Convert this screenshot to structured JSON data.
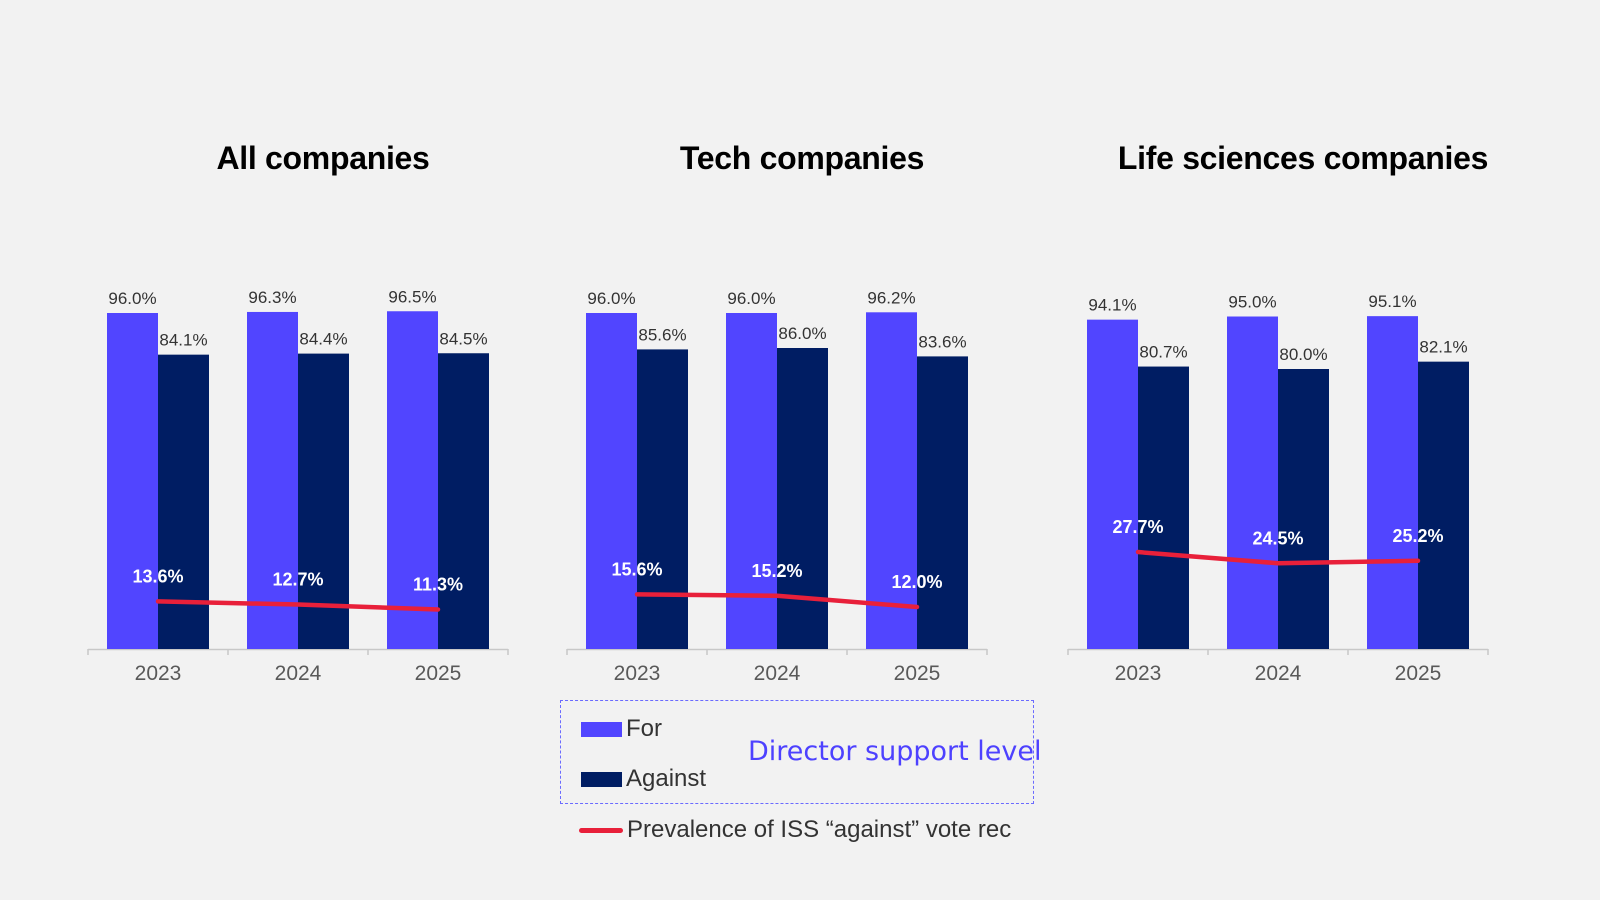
{
  "colors": {
    "for": "#5145ff",
    "against": "#001d63",
    "line": "#e8203a",
    "axis": "#c8c8c8"
  },
  "legend": {
    "for_label": "For",
    "against_label": "Against",
    "line_label": "Prevalence of ISS “against” vote rec",
    "caption": "Director support level"
  },
  "chart_data": [
    {
      "type": "bar",
      "title": "All companies",
      "categories": [
        "2023",
        "2024",
        "2025"
      ],
      "ylim": [
        0,
        100
      ],
      "series": [
        {
          "name": "For",
          "kind": "bar",
          "values": [
            96.0,
            96.3,
            96.5
          ],
          "labels": [
            "96.0%",
            "96.3%",
            "96.5%"
          ]
        },
        {
          "name": "Against",
          "kind": "bar",
          "values": [
            84.1,
            84.4,
            84.5
          ],
          "labels": [
            "84.1%",
            "84.4%",
            "84.5%"
          ]
        },
        {
          "name": "Prevalence of ISS “against” vote rec",
          "kind": "line",
          "values": [
            13.6,
            12.7,
            11.3
          ],
          "labels": [
            "13.6%",
            "12.7%",
            "11.3%"
          ]
        }
      ]
    },
    {
      "type": "bar",
      "title": "Tech companies",
      "categories": [
        "2023",
        "2024",
        "2025"
      ],
      "ylim": [
        0,
        100
      ],
      "series": [
        {
          "name": "For",
          "kind": "bar",
          "values": [
            96.0,
            96.0,
            96.2
          ],
          "labels": [
            "96.0%",
            "96.0%",
            "96.2%"
          ]
        },
        {
          "name": "Against",
          "kind": "bar",
          "values": [
            85.6,
            86.0,
            83.6
          ],
          "labels": [
            "85.6%",
            "86.0%",
            "83.6%"
          ]
        },
        {
          "name": "Prevalence of ISS “against” vote rec",
          "kind": "line",
          "values": [
            15.6,
            15.2,
            12.0
          ],
          "labels": [
            "15.6%",
            "15.2%",
            "12.0%"
          ]
        }
      ]
    },
    {
      "type": "bar",
      "title": "Life sciences companies",
      "categories": [
        "2023",
        "2024",
        "2025"
      ],
      "ylim": [
        0,
        100
      ],
      "series": [
        {
          "name": "For",
          "kind": "bar",
          "values": [
            94.1,
            95.0,
            95.1
          ],
          "labels": [
            "94.1%",
            "95.0%",
            "95.1%"
          ]
        },
        {
          "name": "Against",
          "kind": "bar",
          "values": [
            80.7,
            80.0,
            82.1
          ],
          "labels": [
            "80.7%",
            "80.0%",
            "82.1%"
          ]
        },
        {
          "name": "Prevalence of ISS “against” vote rec",
          "kind": "line",
          "values": [
            27.7,
            24.5,
            25.2
          ],
          "labels": [
            "27.7%",
            "24.5%",
            "25.2%"
          ]
        }
      ]
    }
  ]
}
